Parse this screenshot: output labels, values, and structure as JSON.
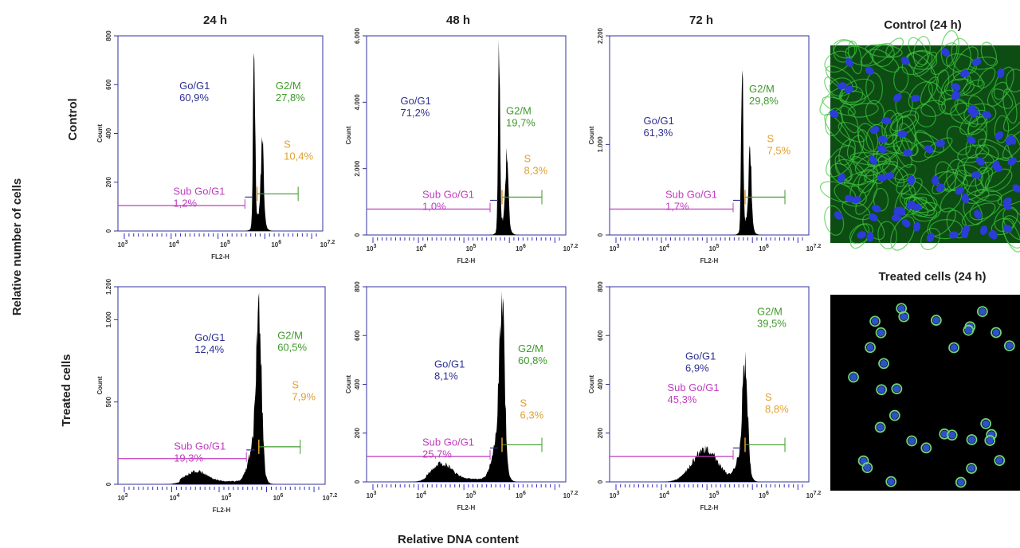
{
  "figure": {
    "columns": [
      "24 h",
      "48 h",
      "72 h"
    ],
    "rows": [
      "Control",
      "Treated cells"
    ],
    "y_label": "Relative number of cells",
    "x_label": "Relative DNA content",
    "image_titles": [
      "Control (24 h)",
      "Treated cells (24 h)"
    ],
    "axis": {
      "y": "Count",
      "x": "FL2-H",
      "x_ticks": [
        {
          "base": "10",
          "exp": "3"
        },
        {
          "base": "10",
          "exp": "4"
        },
        {
          "base": "10",
          "exp": "5"
        },
        {
          "base": "10",
          "exp": "6"
        },
        {
          "base": "10",
          "exp": "7.2"
        }
      ]
    },
    "phase_names": {
      "g0g1": "Go/G1",
      "g2m": "G2/M",
      "s": "S",
      "sub": "Sub Go/G1"
    },
    "panels": [
      {
        "yticks": [
          0,
          200,
          400,
          600,
          800
        ],
        "g0g1": "60,9%",
        "g2m": "27,8%",
        "s": "10,4%",
        "sub": "1,2%"
      },
      {
        "yticks": [
          0,
          {
            "value": 2000,
            "label": "2.000"
          },
          {
            "value": 4000,
            "label": "4.000"
          },
          {
            "value": 6000,
            "label": "6.000"
          }
        ],
        "g0g1": "71,2%",
        "g2m": "19,7%",
        "s": "8,3%",
        "sub": "1,0%"
      },
      {
        "yticks": [
          0,
          {
            "value": 1000,
            "label": "1.000"
          },
          {
            "value": 2200,
            "label": "2.200"
          }
        ],
        "g0g1": "61,3%",
        "g2m": "29,8%",
        "s": "7,5%",
        "sub": "1,7%"
      },
      {
        "yticks": [
          0,
          500,
          {
            "value": 1000,
            "label": "1.000"
          },
          {
            "value": 1200,
            "label": "1.200"
          }
        ],
        "g0g1": "12,4%",
        "g2m": "60,5%",
        "s": "7,9%",
        "sub": "19,3%"
      },
      {
        "yticks": [
          0,
          200,
          400,
          600,
          800
        ],
        "g0g1": "8,1%",
        "g2m": "60,8%",
        "s": "6,3%",
        "sub": "25,7%"
      },
      {
        "yticks": [
          0,
          200,
          400,
          600,
          800
        ],
        "g0g1": "6,9%",
        "g2m": "39,5%",
        "s": "8,8%",
        "sub": "45,3%"
      }
    ]
  }
}
